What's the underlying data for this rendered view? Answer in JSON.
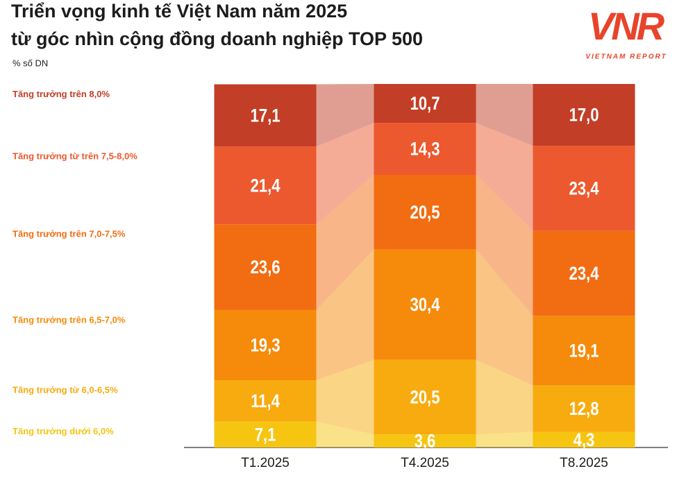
{
  "chart_data": {
    "type": "stacked_bar",
    "title": "Triển vọng kinh tế Việt Nam năm 2025",
    "subtitle": "từ góc nhìn cộng đồng doanh nghiệp TOP 500",
    "y_label": "% số DN",
    "brand": "VNR",
    "brand_subtitle": "VIETNAM REPORT",
    "categories": [
      "T1.2025",
      "T4.2025",
      "T8.2025"
    ],
    "ylim": [
      0,
      100
    ],
    "series": [
      {
        "name": "Tăng trưởng dưới 6,0%",
        "color": "#f6c512",
        "values": [
          7.1,
          3.6,
          4.3
        ],
        "value_labels": [
          "7,1",
          "3,6",
          "4,3"
        ]
      },
      {
        "name": "Tăng trưởng từ 6,0-6,5%",
        "color": "#f8ab0e",
        "values": [
          11.4,
          20.5,
          12.8
        ],
        "value_labels": [
          "11,4",
          "20,5",
          "12,8"
        ]
      },
      {
        "name": "Tăng trưởng trên 6,5-7,0%",
        "color": "#f68a0a",
        "values": [
          19.3,
          30.4,
          19.1
        ],
        "value_labels": [
          "19,3",
          "30,4",
          "19,1"
        ]
      },
      {
        "name": "Tăng trưởng trên 7,0-7,5%",
        "color": "#f26c12",
        "values": [
          23.6,
          20.5,
          23.4
        ],
        "value_labels": [
          "23,6",
          "20,5",
          "23,4"
        ]
      },
      {
        "name": "Tăng trưởng từ trên 7,5-8,0%",
        "color": "#ec592e",
        "values": [
          21.4,
          14.3,
          23.4
        ],
        "value_labels": [
          "21,4",
          "14,3",
          "23,4"
        ]
      },
      {
        "name": "Tăng trưởng trên 8,0%",
        "color": "#c23e26",
        "values": [
          17.1,
          10.7,
          17.0
        ],
        "value_labels": [
          "17,1",
          "10,7",
          "17,0"
        ]
      }
    ]
  }
}
